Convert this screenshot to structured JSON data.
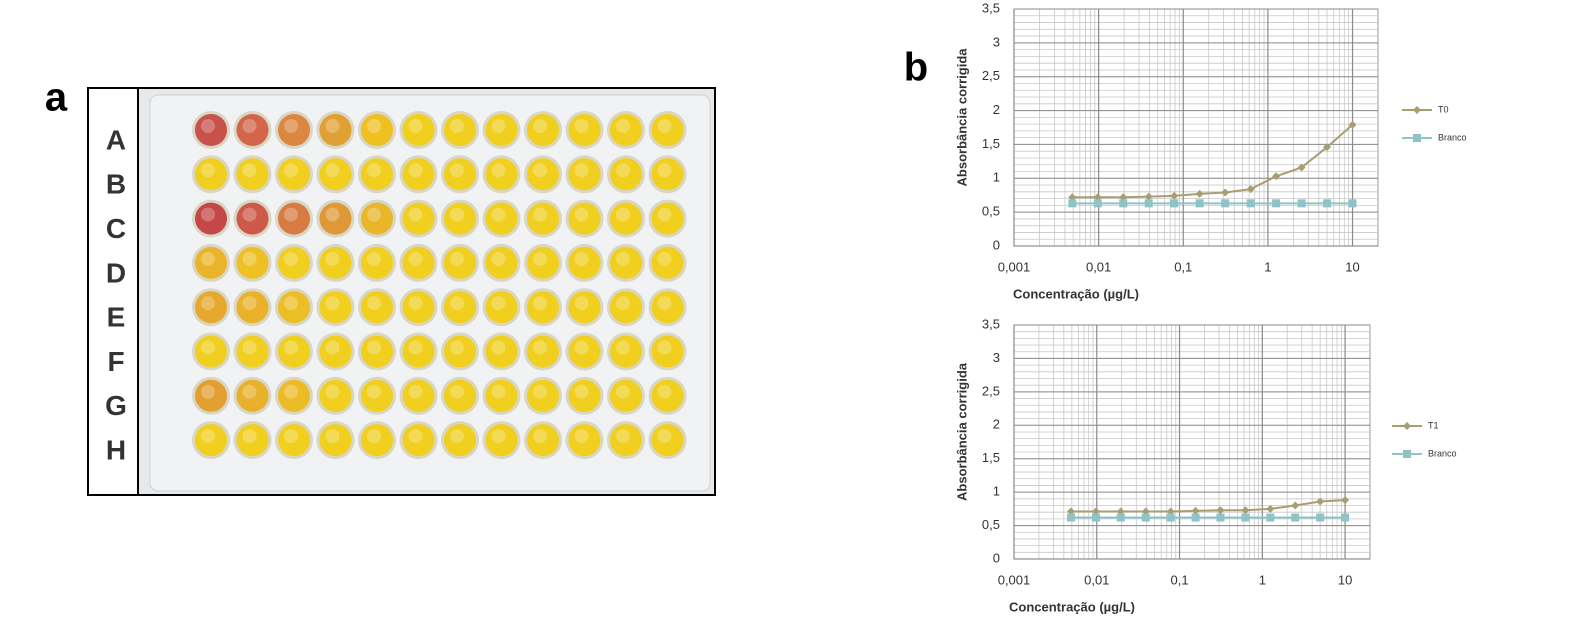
{
  "figure": {
    "panel_a": {
      "label": "a",
      "row_labels": [
        "A",
        "B",
        "C",
        "D",
        "E",
        "F",
        "G",
        "H"
      ]
    },
    "panel_b": {
      "label": "b"
    }
  },
  "chart_data": [
    {
      "type": "line",
      "x_label": "Concentração (µg/L)",
      "y_label": "Absorbância corrigida",
      "x": [
        0.0048828125,
        0.009765625,
        0.01953125,
        0.0390625,
        0.078125,
        0.15625,
        0.3125,
        0.625,
        1.25,
        2.5,
        5,
        10
      ],
      "series": [
        {
          "name": "T0",
          "color": "#a89e72",
          "marker": "diamond",
          "values": [
            0.72,
            0.72,
            0.72,
            0.73,
            0.74,
            0.77,
            0.79,
            0.84,
            1.03,
            1.16,
            1.46,
            1.79
          ]
        },
        {
          "name": "Branco",
          "color": "#8ec4c7",
          "marker": "square",
          "values": [
            0.63,
            0.63,
            0.63,
            0.63,
            0.63,
            0.63,
            0.63,
            0.63,
            0.63,
            0.63,
            0.63,
            0.63
          ]
        }
      ],
      "xscale": "log",
      "xlim": [
        0.001,
        20
      ],
      "xticks": [
        {
          "value": 0.001,
          "label": "0,001"
        },
        {
          "value": 0.01,
          "label": "0,01"
        },
        {
          "value": 0.1,
          "label": "0,1"
        },
        1,
        10
      ],
      "ylim": [
        0,
        3.5
      ],
      "yticks": [
        0,
        {
          "value": 0.5,
          "label": "0,5"
        },
        1,
        {
          "value": 1.5,
          "label": "1,5"
        },
        2,
        {
          "value": 2.5,
          "label": "2,5"
        },
        3,
        {
          "value": 3.5,
          "label": "3,5"
        }
      ],
      "grid": true,
      "minor_grid": true,
      "legend": "right"
    },
    {
      "type": "line",
      "x_label": "Concentração (µg/L)",
      "y_label": "Absorbância corrigida",
      "x": [
        0.0048828125,
        0.009765625,
        0.01953125,
        0.0390625,
        0.078125,
        0.15625,
        0.3125,
        0.625,
        1.25,
        2.5,
        5,
        10
      ],
      "series": [
        {
          "name": "T1",
          "color": "#a89e72",
          "marker": "diamond",
          "values": [
            0.71,
            0.71,
            0.71,
            0.71,
            0.71,
            0.72,
            0.73,
            0.73,
            0.75,
            0.8,
            0.86,
            0.88
          ]
        },
        {
          "name": "Branco",
          "color": "#8ec4c7",
          "marker": "square",
          "values": [
            0.62,
            0.62,
            0.62,
            0.62,
            0.62,
            0.62,
            0.62,
            0.62,
            0.62,
            0.62,
            0.62,
            0.62
          ]
        }
      ],
      "xscale": "log",
      "xlim": [
        0.001,
        20
      ],
      "xticks": [
        {
          "value": 0.001,
          "label": "0,001"
        },
        {
          "value": 0.01,
          "label": "0,01"
        },
        {
          "value": 0.1,
          "label": "0,1"
        },
        1,
        10
      ],
      "ylim": [
        0,
        3.5
      ],
      "yticks": [
        0,
        {
          "value": 0.5,
          "label": "0,5"
        },
        1,
        {
          "value": 1.5,
          "label": "1,5"
        },
        2,
        {
          "value": 2.5,
          "label": "2,5"
        },
        3,
        {
          "value": 3.5,
          "label": "3,5"
        }
      ],
      "grid": true,
      "minor_grid": true,
      "legend": "right"
    }
  ]
}
